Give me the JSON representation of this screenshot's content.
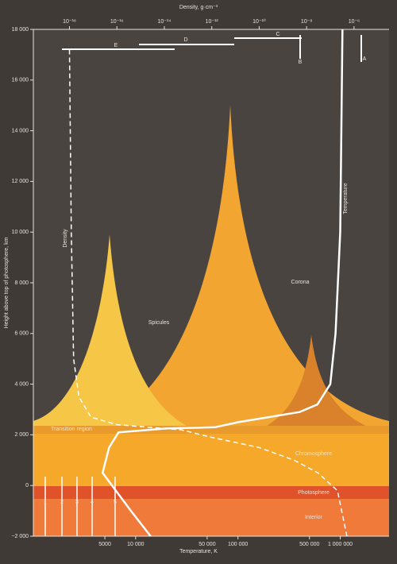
{
  "chart_data": {
    "type": "line",
    "xlabel": "Temperature, K",
    "x2label": "Density, g·cm⁻³",
    "ylabel": "Height above top of photosphere, km",
    "xscale": "log",
    "x2scale": "log",
    "xlim": [
      1000,
      3000000
    ],
    "xticks": [
      5000,
      {
        "value": 10000,
        "label": "10 000"
      },
      {
        "value": 50000,
        "label": "50 000"
      },
      {
        "value": 100000,
        "label": "100 000"
      },
      {
        "value": 500000,
        "label": "500 000"
      },
      {
        "value": 1000000,
        "label": "1 000 000"
      }
    ],
    "x2lim": [
      3e-20,
      3e-05
    ],
    "x2ticks": [
      {
        "value": 1e-18,
        "label": "10⁻¹⁸"
      },
      {
        "value": 1e-16,
        "label": "10⁻¹⁶"
      },
      {
        "value": 1e-14,
        "label": "10⁻¹⁴"
      },
      {
        "value": 1e-12,
        "label": "10⁻¹²"
      },
      {
        "value": 1e-10,
        "label": "10⁻¹⁰"
      },
      {
        "value": 1e-08,
        "label": "10⁻⁸"
      },
      {
        "value": 1e-06,
        "label": "10⁻⁶"
      }
    ],
    "ylim": [
      -2000,
      18000
    ],
    "yticks": [
      {
        "value": -2000,
        "label": "−2 000"
      },
      0,
      {
        "value": 2000,
        "label": "2 000"
      },
      {
        "value": 4000,
        "label": "4 000"
      },
      {
        "value": 6000,
        "label": "6 000"
      },
      {
        "value": 8000,
        "label": "8 000"
      },
      {
        "value": 10000,
        "label": "10 000"
      },
      {
        "value": 12000,
        "label": "12 000"
      },
      {
        "value": 14000,
        "label": "14 000"
      },
      {
        "value": 16000,
        "label": "16 000"
      },
      {
        "value": 18000,
        "label": "18 000"
      }
    ],
    "series": [
      {
        "name": "Temperature",
        "color": "#ffffff",
        "dashed": false,
        "x": [
          14000,
          9000,
          4750,
          5500,
          6800,
          20000,
          60000,
          100000,
          200000,
          400000,
          600000,
          800000,
          900000,
          1000000,
          1050000
        ],
        "values": [
          -2000,
          -1000,
          500,
          1500,
          2100,
          2250,
          2300,
          2500,
          2700,
          2900,
          3200,
          4000,
          6000,
          10000,
          18000
        ]
      },
      {
        "name": "Density",
        "color": "#ffffff",
        "dashed": true,
        "axis": "x2",
        "x": [
          1e-18,
          1.2e-18,
          1.5e-18,
          2.5e-18,
          8e-18,
          1e-16,
          1e-14,
          5e-14,
          1e-12,
          1e-10,
          3e-09,
          3e-08,
          2e-07,
          5e-07
        ],
        "values": [
          17200,
          10000,
          5000,
          3500,
          2700,
          2400,
          2250,
          2200,
          1900,
          1500,
          1000,
          500,
          -200,
          -2000
        ]
      }
    ],
    "regions": [
      "Spicules",
      "Corona",
      "Transition region",
      "Chromosphere",
      "Photosphere",
      "Interior"
    ],
    "top_markers": [
      "A",
      "B",
      "C",
      "D",
      "E"
    ],
    "bottom_markers": [
      "1",
      "2",
      "3",
      "4",
      "5"
    ]
  }
}
